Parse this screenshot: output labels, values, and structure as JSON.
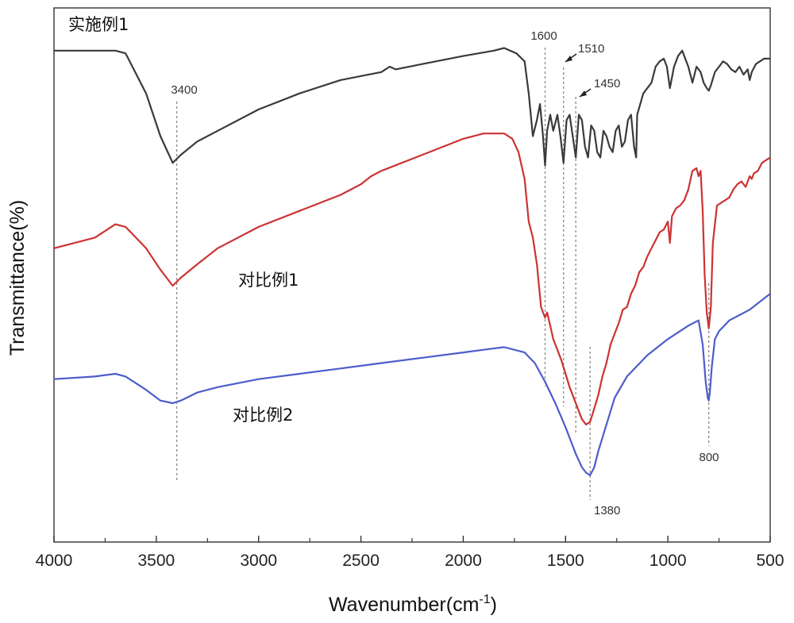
{
  "chart_data": {
    "type": "line",
    "xlabel": "Wavenumber(cm",
    "xlabel_sup": "-1",
    "xlabel_close": ")",
    "ylabel": "Transmittance(%)",
    "xlim": [
      4000,
      500
    ],
    "x_reversed": true,
    "ylim": [
      0,
      100
    ],
    "y_ticks_shown": false,
    "grid": false,
    "x_ticks": [
      4000,
      3500,
      3000,
      2500,
      2000,
      1500,
      1000,
      500
    ],
    "series": [
      {
        "name": "实施例1",
        "color": "#3a3a3a",
        "x": [
          4000,
          3700,
          3650,
          3550,
          3480,
          3420,
          3380,
          3300,
          3200,
          3000,
          2800,
          2600,
          2400,
          2360,
          2330,
          2200,
          2000,
          1850,
          1800,
          1740,
          1700,
          1680,
          1660,
          1640,
          1625,
          1610,
          1600,
          1590,
          1575,
          1560,
          1540,
          1525,
          1510,
          1495,
          1480,
          1465,
          1450,
          1435,
          1420,
          1405,
          1390,
          1375,
          1360,
          1345,
          1330,
          1315,
          1300,
          1285,
          1270,
          1255,
          1240,
          1225,
          1210,
          1195,
          1180,
          1165,
          1155,
          1150,
          1120,
          1080,
          1060,
          1040,
          1020,
          1005,
          990,
          970,
          950,
          930,
          900,
          880,
          860,
          840,
          825,
          810,
          800,
          790,
          770,
          750,
          730,
          710,
          690,
          670,
          650,
          630,
          610,
          600,
          590,
          570,
          550,
          530,
          500
        ],
        "values": [
          92,
          92,
          91.5,
          84,
          76,
          71,
          72.5,
          75,
          77,
          81,
          84,
          86.5,
          88,
          89,
          88.5,
          89.5,
          91,
          92,
          92.5,
          91.5,
          90,
          84,
          76,
          79,
          82,
          76,
          70.5,
          77,
          80,
          77,
          80,
          76,
          71,
          79,
          80,
          76,
          72,
          80,
          79,
          74,
          72,
          78,
          77,
          73,
          72,
          77,
          76,
          74,
          73,
          77,
          78,
          74,
          75,
          79,
          80,
          74,
          72,
          80,
          84,
          86,
          89,
          90,
          90.5,
          89,
          85,
          89,
          91,
          92,
          89,
          86,
          89,
          88,
          86,
          85,
          84.5,
          85.5,
          88,
          89,
          90,
          89.5,
          88.5,
          88,
          89,
          87.5,
          88.5,
          86.5,
          88,
          89.5,
          90,
          90.5,
          90.5
        ]
      },
      {
        "name": "对比例1",
        "color": "#cc3333",
        "x": [
          4000,
          3800,
          3700,
          3650,
          3550,
          3480,
          3420,
          3380,
          3300,
          3200,
          3000,
          2800,
          2600,
          2500,
          2450,
          2400,
          2200,
          2000,
          1900,
          1800,
          1760,
          1730,
          1700,
          1680,
          1660,
          1640,
          1620,
          1600,
          1590,
          1575,
          1560,
          1540,
          1520,
          1500,
          1480,
          1460,
          1440,
          1420,
          1400,
          1380,
          1360,
          1340,
          1320,
          1300,
          1280,
          1260,
          1240,
          1220,
          1200,
          1180,
          1160,
          1140,
          1120,
          1100,
          1080,
          1060,
          1040,
          1020,
          1000,
          990,
          980,
          960,
          940,
          920,
          900,
          880,
          860,
          850,
          840,
          830,
          820,
          810,
          800,
          790,
          780,
          760,
          740,
          720,
          700,
          680,
          660,
          640,
          620,
          600,
          590,
          580,
          560,
          540,
          520,
          500
        ],
        "values": [
          55,
          57,
          59.5,
          59,
          55,
          51,
          48,
          49.5,
          52,
          55,
          59,
          62,
          65,
          67,
          68.5,
          69.5,
          72.5,
          75.5,
          76.5,
          76.5,
          75.5,
          73,
          68,
          60,
          57,
          52,
          44,
          42,
          43,
          40.5,
          38,
          36,
          34,
          31.5,
          29,
          27,
          25,
          23,
          22,
          22.5,
          25,
          27.5,
          31,
          33.5,
          37,
          39,
          41,
          43.5,
          44,
          46.5,
          48,
          50.5,
          51.5,
          53.5,
          55,
          56.5,
          58,
          58.5,
          60,
          56,
          61,
          62.5,
          63,
          64,
          66,
          69.5,
          70,
          68.5,
          69.5,
          62,
          50,
          43,
          40,
          44,
          56,
          63,
          63.5,
          64,
          64.5,
          66,
          67,
          67.5,
          66.5,
          68.5,
          68,
          69,
          69.5,
          71,
          71.5,
          72
        ]
      },
      {
        "name": "对比例2",
        "color": "#4d5ccc",
        "x": [
          4000,
          3800,
          3700,
          3650,
          3550,
          3480,
          3420,
          3380,
          3300,
          3200,
          3000,
          2800,
          2600,
          2400,
          2200,
          2000,
          1900,
          1800,
          1700,
          1650,
          1600,
          1550,
          1500,
          1450,
          1420,
          1400,
          1380,
          1360,
          1340,
          1300,
          1260,
          1200,
          1100,
          1000,
          900,
          850,
          830,
          815,
          805,
          800,
          795,
          785,
          770,
          750,
          700,
          650,
          600,
          550,
          500
        ],
        "values": [
          30.5,
          31,
          31.5,
          31,
          28.5,
          26.5,
          26,
          26.5,
          28,
          29,
          30.5,
          31.5,
          32.5,
          33.5,
          34.5,
          35.5,
          36,
          36.5,
          35.5,
          33.5,
          30,
          26,
          21.5,
          16.5,
          14,
          13,
          12.5,
          14,
          17,
          22,
          27,
          31,
          35,
          38,
          40.5,
          41.5,
          37,
          30,
          27,
          26.5,
          28,
          33,
          38,
          39.5,
          41.5,
          42.5,
          43.5,
          45,
          46.5
        ]
      }
    ],
    "annotations": [
      {
        "label": "3400",
        "x": 3400
      },
      {
        "label": "1600",
        "x": 1600
      },
      {
        "label": "1510",
        "x": 1510
      },
      {
        "label": "1450",
        "x": 1450
      },
      {
        "label": "1380",
        "x": 1380
      },
      {
        "label": "800",
        "x": 800
      }
    ]
  }
}
